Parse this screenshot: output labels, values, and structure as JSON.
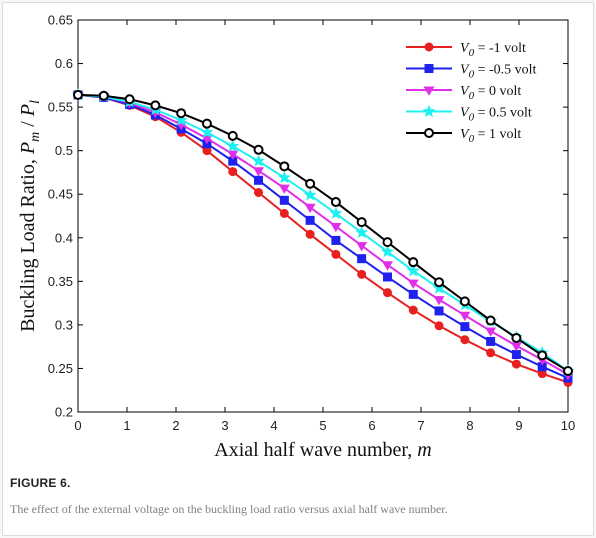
{
  "figure": {
    "label": "FIGURE 6.",
    "caption": "The effect of the external voltage on the buckling load ratio versus axial half wave number."
  },
  "chart_data": {
    "type": "line",
    "title": "",
    "xlabel_main": "Axial half wave number, ",
    "xlabel_var": "m",
    "ylabel_main": "Buckling Load Ratio, ",
    "ylabel_p1": "P",
    "ylabel_sub1": "m",
    "ylabel_sep": " / ",
    "ylabel_p2": "P",
    "ylabel_sub2": "l",
    "xlim": [
      0,
      10
    ],
    "ylim": [
      0.2,
      0.65
    ],
    "x_ticks": [
      "0",
      "1",
      "2",
      "3",
      "4",
      "5",
      "6",
      "7",
      "8",
      "9",
      "10"
    ],
    "y_ticks": [
      "0.2",
      "0.25",
      "0.3",
      "0.35",
      "0.4",
      "0.45",
      "0.5",
      "0.55",
      "0.6",
      "0.65"
    ],
    "grid": false,
    "legend_position": "top-right",
    "legend_var": "V",
    "legend_sub": "0",
    "x": [
      0,
      0.526,
      1.053,
      1.579,
      2.105,
      2.632,
      3.158,
      3.684,
      4.211,
      4.737,
      5.263,
      5.789,
      6.316,
      6.842,
      7.368,
      7.895,
      8.421,
      8.947,
      9.474,
      10
    ],
    "series": [
      {
        "name": " = -1 volt",
        "color": "#e8201f",
        "marker": "circle",
        "values": [
          0.564,
          0.561,
          0.552,
          0.539,
          0.521,
          0.5,
          0.476,
          0.452,
          0.428,
          0.404,
          0.381,
          0.358,
          0.337,
          0.317,
          0.299,
          0.283,
          0.268,
          0.255,
          0.244,
          0.234
        ]
      },
      {
        "name": " = -0.5 volt",
        "color": "#1f22ee",
        "marker": "square",
        "values": [
          0.564,
          0.561,
          0.553,
          0.541,
          0.525,
          0.508,
          0.488,
          0.466,
          0.443,
          0.42,
          0.397,
          0.376,
          0.355,
          0.335,
          0.316,
          0.298,
          0.281,
          0.266,
          0.252,
          0.239
        ]
      },
      {
        "name": " = 0 volt",
        "color": "#e12ee9",
        "marker": "triangle-down",
        "values": [
          0.564,
          0.562,
          0.555,
          0.544,
          0.53,
          0.514,
          0.496,
          0.477,
          0.457,
          0.435,
          0.413,
          0.391,
          0.369,
          0.348,
          0.329,
          0.311,
          0.293,
          0.276,
          0.26,
          0.243
        ]
      },
      {
        "name": " = 0.5 volt",
        "color": "#1ff0f0",
        "marker": "star",
        "values": [
          0.564,
          0.562,
          0.556,
          0.547,
          0.535,
          0.521,
          0.505,
          0.488,
          0.469,
          0.449,
          0.428,
          0.406,
          0.384,
          0.362,
          0.342,
          0.323,
          0.304,
          0.286,
          0.268,
          0.247
        ]
      },
      {
        "name": " = 1 volt",
        "color": "#000000",
        "marker": "open-circle",
        "values": [
          0.564,
          0.563,
          0.559,
          0.552,
          0.543,
          0.531,
          0.517,
          0.501,
          0.482,
          0.462,
          0.441,
          0.418,
          0.395,
          0.372,
          0.349,
          0.327,
          0.305,
          0.285,
          0.265,
          0.247
        ]
      }
    ]
  }
}
